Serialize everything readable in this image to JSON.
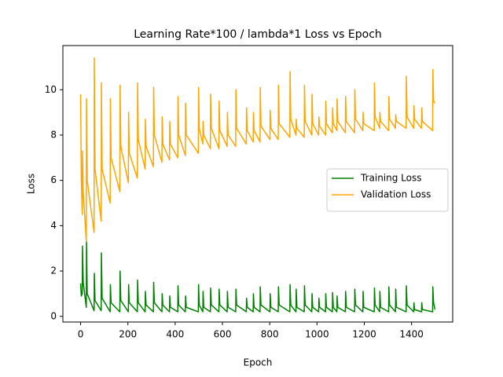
{
  "chart_data": {
    "type": "line",
    "title": "Learning Rate*100 / lambda*1 Loss vs Epoch",
    "x_label": "Epoch",
    "y_label": "Loss",
    "x": [
      0,
      3,
      7,
      8,
      11,
      24,
      25,
      28,
      57,
      58,
      61,
      87,
      88,
      91,
      125,
      126,
      129,
      166,
      167,
      170,
      202,
      203,
      206,
      240,
      241,
      244,
      273,
      274,
      277,
      308,
      309,
      312,
      344,
      345,
      348,
      376,
      377,
      380,
      411,
      412,
      415,
      443,
      444,
      447,
      498,
      499,
      502,
      517,
      518,
      521,
      549,
      550,
      553,
      585,
      586,
      589,
      620,
      621,
      624,
      656,
      657,
      660,
      701,
      702,
      705,
      730,
      731,
      734,
      759,
      760,
      763,
      801,
      802,
      805,
      836,
      837,
      840,
      885,
      886,
      889,
      911,
      912,
      915,
      946,
      947,
      950,
      978,
      979,
      982,
      1007,
      1008,
      1011,
      1036,
      1037,
      1040,
      1065,
      1066,
      1069,
      1084,
      1085,
      1088,
      1120,
      1121,
      1124,
      1159,
      1160,
      1163,
      1194,
      1195,
      1198,
      1242,
      1243,
      1246,
      1265,
      1266,
      1269,
      1303,
      1304,
      1307,
      1332,
      1333,
      1336,
      1377,
      1378,
      1381,
      1409,
      1410,
      1413,
      1442,
      1443,
      1446,
      1489,
      1490,
      1493,
      1499
    ],
    "series": [
      {
        "name": "Training Loss",
        "color": "#008000",
        "values": [
          1.45,
          0.9,
          1.0,
          3.1,
          1.5,
          0.4,
          3.3,
          1.0,
          0.25,
          1.9,
          0.7,
          0.25,
          2.8,
          0.8,
          0.2,
          1.4,
          0.6,
          0.2,
          2.0,
          0.7,
          0.2,
          1.4,
          0.6,
          0.2,
          1.6,
          0.6,
          0.2,
          1.1,
          0.5,
          0.2,
          1.5,
          0.6,
          0.2,
          1.0,
          0.5,
          0.2,
          0.9,
          0.4,
          0.2,
          1.35,
          0.5,
          0.2,
          0.9,
          0.4,
          0.2,
          1.4,
          0.5,
          0.2,
          1.1,
          0.4,
          0.2,
          1.25,
          0.5,
          0.2,
          1.2,
          0.5,
          0.2,
          1.1,
          0.4,
          0.2,
          1.2,
          0.5,
          0.2,
          0.8,
          0.4,
          0.2,
          1.0,
          0.4,
          0.2,
          1.3,
          0.5,
          0.2,
          1.0,
          0.4,
          0.2,
          1.3,
          0.5,
          0.2,
          1.4,
          0.5,
          0.2,
          1.2,
          0.4,
          0.2,
          1.35,
          0.5,
          0.2,
          1.0,
          0.4,
          0.2,
          0.8,
          0.4,
          0.2,
          1.0,
          0.4,
          0.2,
          1.05,
          0.4,
          0.2,
          0.9,
          0.4,
          0.2,
          1.1,
          0.4,
          0.2,
          1.2,
          0.5,
          0.2,
          1.1,
          0.4,
          0.2,
          1.25,
          0.5,
          0.2,
          1.1,
          0.4,
          0.2,
          1.3,
          0.5,
          0.2,
          1.2,
          0.4,
          0.2,
          1.35,
          0.5,
          0.2,
          0.6,
          0.3,
          0.2,
          0.6,
          0.3,
          0.2,
          1.3,
          0.6,
          0.3
        ]
      },
      {
        "name": "Validation Loss",
        "color": "#ffa500",
        "values": [
          9.8,
          6.0,
          4.5,
          7.3,
          5.5,
          3.3,
          9.6,
          6.0,
          3.7,
          11.4,
          6.5,
          4.2,
          10.3,
          6.5,
          5.0,
          9.6,
          7.0,
          5.5,
          10.2,
          7.5,
          5.9,
          9.0,
          7.2,
          6.1,
          10.3,
          7.8,
          6.5,
          8.7,
          7.5,
          6.6,
          10.1,
          8.0,
          6.8,
          8.8,
          7.6,
          6.9,
          8.6,
          7.6,
          7.0,
          9.7,
          8.0,
          7.1,
          9.4,
          8.0,
          7.2,
          10.1,
          8.3,
          7.6,
          8.6,
          8.0,
          7.4,
          9.8,
          8.3,
          7.4,
          9.5,
          8.2,
          7.5,
          9.0,
          8.0,
          7.5,
          10.0,
          8.3,
          7.6,
          9.2,
          8.2,
          7.7,
          9.0,
          8.2,
          7.7,
          10.1,
          8.4,
          7.8,
          9.1,
          8.3,
          7.8,
          10.2,
          8.5,
          7.9,
          10.8,
          8.7,
          8.0,
          8.7,
          8.3,
          7.9,
          10.2,
          8.6,
          8.0,
          9.8,
          8.5,
          8.0,
          8.8,
          8.4,
          8.0,
          9.5,
          8.5,
          8.1,
          9.2,
          8.5,
          8.2,
          9.6,
          8.6,
          8.1,
          9.7,
          8.6,
          8.1,
          10.0,
          8.7,
          8.2,
          9.0,
          8.5,
          8.2,
          10.3,
          8.8,
          8.3,
          9.0,
          8.6,
          8.2,
          9.7,
          8.7,
          8.3,
          8.9,
          8.6,
          8.3,
          10.6,
          8.8,
          8.3,
          9.3,
          8.7,
          8.3,
          9.2,
          8.6,
          8.2,
          10.9,
          9.5,
          9.4
        ]
      }
    ],
    "xlim": [
      -75,
      1574
    ],
    "ylim": [
      -0.25,
      11.95
    ],
    "xticks": [
      0,
      200,
      400,
      600,
      800,
      1000,
      1200,
      1400
    ],
    "yticks": [
      0,
      2,
      4,
      6,
      8,
      10
    ],
    "legend": "center right"
  }
}
